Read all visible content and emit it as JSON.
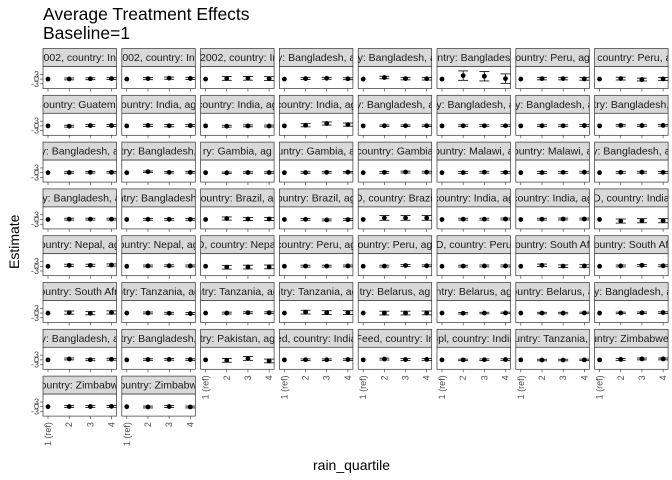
{
  "chart_data": {
    "type": "scatter",
    "title": "Average Treatment Effects\nBaseline=1",
    "title_lines": [
      "Average Treatment Effects",
      "Baseline=1"
    ],
    "xlabel": "rain_quartile",
    "ylabel": "Estimate",
    "x_categories": [
      "1 (ref)",
      "2",
      "3",
      "4"
    ],
    "y_tick_labels": [
      "3",
      "0",
      "-3"
    ],
    "y_ticks": [
      3,
      0,
      -3
    ],
    "ylim": [
      -6,
      8
    ],
    "grid": false,
    "facet_layout": {
      "ncol": 8,
      "nrow": 8
    },
    "panels": [
      {
        "strip": "002, country: In",
        "estimates": [
          0,
          0.1,
          0.2,
          0.3
        ],
        "errors": [
          0,
          0.6,
          0.6,
          0.6
        ]
      },
      {
        "strip": "002, country: In",
        "estimates": [
          0,
          0.3,
          0.6,
          0.4
        ],
        "errors": [
          0,
          0.7,
          0.7,
          0.7
        ]
      },
      {
        "strip": "-2002, country: In",
        "estimates": [
          0,
          0.4,
          0.5,
          0.3
        ],
        "errors": [
          0,
          1.2,
          1.2,
          1.2
        ]
      },
      {
        "strip": "y: Bangladesh, a",
        "estimates": [
          0,
          0.3,
          0.5,
          0.2
        ],
        "errors": [
          0,
          0.6,
          0.6,
          0.6
        ]
      },
      {
        "strip": "ry: Bangladesh, a",
        "estimates": [
          0,
          1.0,
          0.3,
          0.2
        ],
        "errors": [
          0,
          0.8,
          0.8,
          0.8
        ]
      },
      {
        "strip": "ntry: Banglades",
        "estimates": [
          0,
          2.2,
          1.8,
          0.3
        ],
        "errors": [
          0,
          3.0,
          3.0,
          3.0
        ]
      },
      {
        "strip": "ountry: Peru, ag",
        "estimates": [
          0,
          0.3,
          0.3,
          0.1
        ],
        "errors": [
          0,
          0.8,
          0.8,
          0.8
        ]
      },
      {
        "strip": ", country: Peru, a",
        "estimates": [
          0,
          0.3,
          -0.3,
          0.1
        ],
        "errors": [
          0,
          0.9,
          0.9,
          0.9
        ]
      },
      {
        "strip": "country: Guatema",
        "estimates": [
          0,
          -0.2,
          0.2,
          0.2
        ],
        "errors": [
          0,
          0.6,
          0.6,
          0.6
        ]
      },
      {
        "strip": "ountry: India, ag",
        "estimates": [
          0,
          0.3,
          0.1,
          0.2
        ],
        "errors": [
          0,
          0.7,
          0.7,
          0.7
        ]
      },
      {
        "strip": "country: India, ag",
        "estimates": [
          0,
          -0.2,
          0.0,
          -0.1
        ],
        "errors": [
          0,
          0.6,
          0.6,
          0.6
        ]
      },
      {
        "strip": "country: India, ag",
        "estimates": [
          0,
          0.4,
          1.5,
          0.8
        ],
        "errors": [
          0,
          1.0,
          1.0,
          1.0
        ]
      },
      {
        "strip": "y: Bangladesh, a",
        "estimates": [
          0,
          0.1,
          0.1,
          0.1
        ],
        "errors": [
          0,
          0.5,
          0.5,
          0.5
        ]
      },
      {
        "strip": "ry: Bangladesh, a",
        "estimates": [
          0,
          0.1,
          0.1,
          0.1
        ],
        "errors": [
          0,
          0.6,
          0.6,
          0.6
        ]
      },
      {
        "strip": "ry: Bangladesh, a",
        "estimates": [
          0,
          0.1,
          0.1,
          0.2
        ],
        "errors": [
          0,
          0.6,
          0.6,
          0.6
        ]
      },
      {
        "strip": "try: Bangladesh,",
        "estimates": [
          0,
          0.3,
          0.2,
          0.3
        ],
        "errors": [
          0,
          0.5,
          0.5,
          0.5
        ]
      },
      {
        "strip": "y: Bangladesh, a",
        "estimates": [
          0,
          0.1,
          0.2,
          0.2
        ],
        "errors": [
          0,
          0.5,
          0.5,
          0.5
        ]
      },
      {
        "strip": "try: Bangladesh,",
        "estimates": [
          0,
          0.6,
          0.2,
          0.2
        ],
        "errors": [
          0,
          0.5,
          0.5,
          0.5
        ]
      },
      {
        "strip": "ry: Gambia, ag",
        "estimates": [
          0,
          -0.1,
          0.1,
          0.1
        ],
        "errors": [
          0,
          0.5,
          0.5,
          0.5
        ]
      },
      {
        "strip": "ountry: Gambia, ag",
        "estimates": [
          0,
          0.1,
          0.2,
          0.3
        ],
        "errors": [
          0,
          0.5,
          0.5,
          0.5
        ]
      },
      {
        "strip": "country: Gambia",
        "estimates": [
          0,
          0.2,
          0.4,
          0.3
        ],
        "errors": [
          0,
          0.6,
          0.6,
          0.6
        ]
      },
      {
        "strip": "ountry: Malawi, a",
        "estimates": [
          0,
          0.1,
          0.3,
          0.2
        ],
        "errors": [
          0,
          0.6,
          0.6,
          0.6
        ]
      },
      {
        "strip": "ountry: Malawi, a",
        "estimates": [
          0,
          0.1,
          0.2,
          0.3
        ],
        "errors": [
          0,
          0.6,
          0.6,
          0.6
        ]
      },
      {
        "strip": "y: Bangladesh, a",
        "estimates": [
          0,
          0.2,
          0.3,
          0.2
        ],
        "errors": [
          0,
          0.6,
          0.6,
          0.6
        ]
      },
      {
        "strip": "ry: Bangladesh, a",
        "estimates": [
          0,
          0.2,
          0.2,
          0.2
        ],
        "errors": [
          0,
          0.6,
          0.6,
          0.6
        ]
      },
      {
        "strip": "ntry: Bangladesh,",
        "estimates": [
          0,
          0.1,
          0.1,
          0.1
        ],
        "errors": [
          0,
          0.6,
          0.6,
          0.6
        ]
      },
      {
        "strip": "country: Brazil, ag",
        "estimates": [
          0,
          0.6,
          0.3,
          0.3
        ],
        "errors": [
          0,
          1.0,
          1.0,
          1.0
        ]
      },
      {
        "strip": "ountry: Brazil, ag",
        "estimates": [
          0,
          0.1,
          -0.3,
          -0.1
        ],
        "errors": [
          0,
          0.6,
          0.6,
          0.6
        ]
      },
      {
        "strip": "D, country: Brazil",
        "estimates": [
          0,
          1.0,
          1.0,
          1.0
        ],
        "errors": [
          0,
          1.5,
          1.5,
          1.5
        ]
      },
      {
        "strip": "country: India, ag",
        "estimates": [
          0,
          0.2,
          0.2,
          0.3
        ],
        "errors": [
          0,
          0.6,
          0.6,
          0.6
        ]
      },
      {
        "strip": "country: India, ag",
        "estimates": [
          0,
          0.2,
          0.3,
          0.3
        ],
        "errors": [
          0,
          0.6,
          0.6,
          0.6
        ]
      },
      {
        "strip": "D, country: India",
        "estimates": [
          0,
          -1.0,
          -0.8,
          -0.8
        ],
        "errors": [
          0,
          1.3,
          1.3,
          1.3
        ]
      },
      {
        "strip": "ountry: Nepal, ag",
        "estimates": [
          0,
          0.6,
          0.6,
          0.8
        ],
        "errors": [
          0,
          0.7,
          0.7,
          0.7
        ]
      },
      {
        "strip": "ountry: Nepal, ag",
        "estimates": [
          0,
          0.2,
          0.3,
          0.2
        ],
        "errors": [
          0,
          0.6,
          0.6,
          0.6
        ]
      },
      {
        "strip": "D, country: Nepal",
        "estimates": [
          0,
          -0.6,
          -0.5,
          -0.4
        ],
        "errors": [
          0,
          1.2,
          1.2,
          1.2
        ]
      },
      {
        "strip": "country: Peru, ag",
        "estimates": [
          0,
          0.1,
          0.1,
          0.2
        ],
        "errors": [
          0,
          0.6,
          0.6,
          0.6
        ]
      },
      {
        "strip": "ountry: Peru, ag",
        "estimates": [
          0,
          0.1,
          0.5,
          0.3
        ],
        "errors": [
          0,
          0.6,
          0.6,
          0.6
        ]
      },
      {
        "strip": "D, country: Peru",
        "estimates": [
          0,
          0.1,
          0.2,
          0.2
        ],
        "errors": [
          0,
          0.6,
          0.6,
          0.6
        ]
      },
      {
        "strip": "country: South Afri",
        "estimates": [
          0,
          0.6,
          0.1,
          0.2
        ],
        "errors": [
          0,
          0.8,
          0.8,
          0.8
        ]
      },
      {
        "strip": "country: South Afri",
        "estimates": [
          0,
          0.2,
          0.6,
          0.3
        ],
        "errors": [
          0,
          0.6,
          0.6,
          0.6
        ]
      },
      {
        "strip": "ountry: South Afri",
        "estimates": [
          0,
          0.3,
          -0.1,
          0.4
        ],
        "errors": [
          0,
          1.0,
          1.0,
          1.0
        ]
      },
      {
        "strip": "ntry: Tanzania, ag",
        "estimates": [
          0,
          0.1,
          -0.1,
          -0.3
        ],
        "errors": [
          0,
          0.6,
          0.6,
          0.6
        ]
      },
      {
        "strip": "ntry: Tanzania, ag",
        "estimates": [
          0,
          0.0,
          0.2,
          0.2
        ],
        "errors": [
          0,
          0.6,
          0.6,
          0.6
        ]
      },
      {
        "strip": "ntry: Tanzania, ag",
        "estimates": [
          0,
          0.6,
          0.3,
          0.3
        ],
        "errors": [
          0,
          1.2,
          1.2,
          1.2
        ]
      },
      {
        "strip": "try: Belarus, ag",
        "estimates": [
          0,
          0.0,
          0.0,
          0.1
        ],
        "errors": [
          0,
          1.2,
          1.2,
          1.2
        ]
      },
      {
        "strip": "ntry: Belarus, ag",
        "estimates": [
          0,
          -0.1,
          0.0,
          0.1
        ],
        "errors": [
          0,
          0.5,
          0.5,
          0.5
        ]
      },
      {
        "strip": "ountry: Belarus, a",
        "estimates": [
          0,
          0.0,
          0.0,
          0.1
        ],
        "errors": [
          0,
          0.5,
          0.5,
          0.5
        ]
      },
      {
        "strip": "ry: Bangladesh, a",
        "estimates": [
          0,
          0.1,
          0.2,
          0.3
        ],
        "errors": [
          0,
          0.5,
          0.5,
          0.5
        ]
      },
      {
        "strip": "y: Bangladesh, a",
        "estimates": [
          0,
          0.6,
          0.1,
          0.4
        ],
        "errors": [
          0,
          0.6,
          0.6,
          0.6
        ]
      },
      {
        "strip": "try: Bangladesh,",
        "estimates": [
          0,
          0.2,
          0.3,
          0.2
        ],
        "errors": [
          0,
          0.5,
          0.5,
          0.5
        ]
      },
      {
        "strip": "try: Pakistan, ag",
        "estimates": [
          0,
          -0.3,
          0.9,
          -0.7
        ],
        "errors": [
          0,
          1.2,
          1.2,
          1.2
        ]
      },
      {
        "strip": "ed, country: India",
        "estimates": [
          0,
          0.1,
          0.1,
          0.2
        ],
        "errors": [
          0,
          0.5,
          0.5,
          0.5
        ]
      },
      {
        "strip": "Feed, country: In",
        "estimates": [
          0,
          0.5,
          0.2,
          0.3
        ],
        "errors": [
          0,
          0.6,
          0.6,
          0.6
        ]
      },
      {
        "strip": "ppl, country: India",
        "estimates": [
          0,
          0.0,
          0.1,
          0.2
        ],
        "errors": [
          0,
          0.5,
          0.5,
          0.5
        ]
      },
      {
        "strip": "ountry: Tanzania, a",
        "estimates": [
          0,
          -0.1,
          -0.1,
          0.0
        ],
        "errors": [
          0,
          0.5,
          0.5,
          0.5
        ]
      },
      {
        "strip": "untry: Zimbabwe,",
        "estimates": [
          0,
          0.3,
          0.6,
          0.6
        ],
        "errors": [
          0,
          0.6,
          0.6,
          0.6
        ]
      },
      {
        "strip": "country: Zimbabwe",
        "estimates": [
          0,
          0.1,
          0.1,
          0.2
        ],
        "errors": [
          0,
          0.6,
          0.6,
          0.6
        ]
      },
      {
        "strip": "country: Zimbabwe",
        "estimates": [
          0,
          -0.2,
          0.1,
          -0.2
        ],
        "errors": [
          0,
          0.6,
          0.6,
          0.6
        ]
      }
    ]
  }
}
